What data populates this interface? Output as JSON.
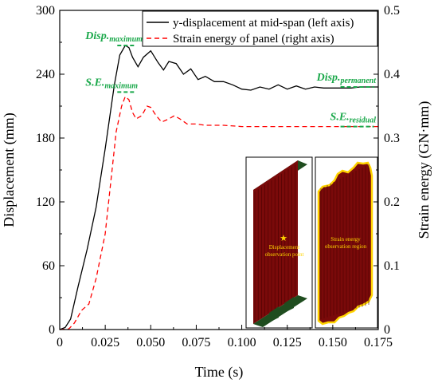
{
  "chart_data": {
    "type": "line",
    "xlabel": "Time (s)",
    "ylabel_left": "Displacement (mm)",
    "ylabel_right": "Strain energy (GN·mm)",
    "xlim": [
      0,
      0.175
    ],
    "ylim_left": [
      0,
      300
    ],
    "ylim_right": [
      0,
      0.5
    ],
    "x_ticks": [
      "0",
      "0.025",
      "0.050",
      "0.075",
      "0.100",
      "0.125",
      "0.150",
      "0.175"
    ],
    "y_left_ticks": [
      "0",
      "60",
      "120",
      "180",
      "240",
      "300"
    ],
    "y_right_ticks": [
      "0",
      "0.1",
      "0.2",
      "0.3",
      "0.4",
      "0.5"
    ],
    "legend_position": "top-right",
    "series": [
      {
        "name": "y-displacement at mid-span (left axis)",
        "axis": "left",
        "color": "#000000",
        "dash": "solid",
        "x": [
          0,
          0.003,
          0.006,
          0.01,
          0.015,
          0.02,
          0.025,
          0.03,
          0.033,
          0.036,
          0.038,
          0.04,
          0.043,
          0.046,
          0.05,
          0.054,
          0.057,
          0.06,
          0.064,
          0.068,
          0.072,
          0.076,
          0.08,
          0.085,
          0.09,
          0.095,
          0.1,
          0.105,
          0.11,
          0.115,
          0.12,
          0.125,
          0.13,
          0.135,
          0.14,
          0.145,
          0.15,
          0.155,
          0.16,
          0.165,
          0.17,
          0.175
        ],
        "y": [
          0,
          2,
          10,
          40,
          75,
          115,
          170,
          230,
          258,
          267,
          265,
          256,
          247,
          256,
          262,
          251,
          244,
          252,
          250,
          240,
          245,
          235,
          238,
          233,
          233,
          230,
          226,
          225,
          228,
          226,
          230,
          226,
          229,
          226,
          228,
          227,
          227,
          227,
          227,
          228,
          228,
          228
        ]
      },
      {
        "name": "Strain energy of panel (right axis)",
        "axis": "right",
        "color": "#ff0000",
        "dash": "dashed",
        "x": [
          0,
          0.005,
          0.008,
          0.012,
          0.016,
          0.02,
          0.025,
          0.028,
          0.031,
          0.034,
          0.036,
          0.038,
          0.04,
          0.042,
          0.045,
          0.048,
          0.05,
          0.053,
          0.056,
          0.06,
          0.063,
          0.066,
          0.07,
          0.075,
          0.08,
          0.085,
          0.09,
          0.1,
          0.11,
          0.12,
          0.13,
          0.14,
          0.15,
          0.16,
          0.17,
          0.175
        ],
        "y": [
          0,
          0.001,
          0.01,
          0.03,
          0.04,
          0.08,
          0.15,
          0.23,
          0.31,
          0.35,
          0.365,
          0.36,
          0.34,
          0.33,
          0.335,
          0.35,
          0.348,
          0.335,
          0.325,
          0.33,
          0.335,
          0.33,
          0.322,
          0.322,
          0.32,
          0.32,
          0.32,
          0.318,
          0.318,
          0.318,
          0.318,
          0.318,
          0.318,
          0.318,
          0.318,
          0.318
        ]
      }
    ],
    "annotations": [
      {
        "main": "Disp.",
        "sub": "maximum",
        "x": 0.036,
        "value": 267,
        "axis": "left"
      },
      {
        "main": "S.E.",
        "sub": "maximum",
        "x": 0.036,
        "value": 0.372,
        "axis": "right"
      },
      {
        "main": "Disp.",
        "sub": "permanent",
        "x": 0.163,
        "value": 228,
        "axis": "left"
      },
      {
        "main": "S.E.",
        "sub": "residual",
        "x": 0.163,
        "value": 0.318,
        "axis": "right"
      }
    ],
    "inset": {
      "left_label": "Displacement observation point",
      "right_label": "Strain energy observation region",
      "colors": {
        "panel": "#7a0a0a",
        "stiffener": "#1f4d1f",
        "highlight": "#ffd400"
      }
    }
  }
}
